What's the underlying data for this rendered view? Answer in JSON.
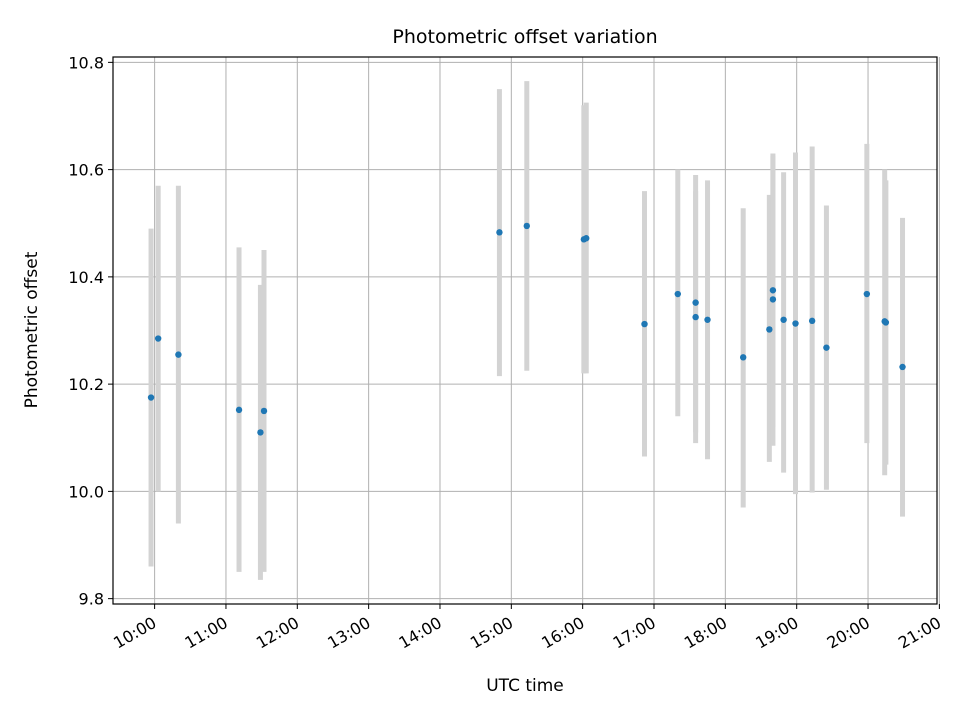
{
  "chart_data": {
    "type": "scatter",
    "title": "Photometric offset variation",
    "xlabel": "UTC time",
    "ylabel": "Photometric offset",
    "x_ticks": [
      "10:00",
      "11:00",
      "12:00",
      "13:00",
      "14:00",
      "15:00",
      "16:00",
      "17:00",
      "18:00",
      "19:00",
      "20:00",
      "21:00"
    ],
    "y_ticks": [
      "9.8",
      "10.0",
      "10.2",
      "10.4",
      "10.6",
      "10.8"
    ],
    "xlim": [
      "09:25",
      "20:58"
    ],
    "ylim": [
      9.79,
      10.81
    ],
    "grid": true,
    "colors": {
      "points": "#1f77b4",
      "errorbars": "#d3d3d3",
      "grid": "#b0b0b0",
      "axes": "#000000"
    },
    "series": [
      {
        "points": [
          {
            "x": "09:57",
            "y": 10.175,
            "ylow": 9.86,
            "yhigh": 10.49
          },
          {
            "x": "10:03",
            "y": 10.285,
            "ylow": 10.0,
            "yhigh": 10.57
          },
          {
            "x": "10:20",
            "y": 10.255,
            "ylow": 9.94,
            "yhigh": 10.57
          },
          {
            "x": "11:11",
            "y": 10.152,
            "ylow": 9.85,
            "yhigh": 10.455
          },
          {
            "x": "11:29",
            "y": 10.11,
            "ylow": 9.835,
            "yhigh": 10.385
          },
          {
            "x": "11:32",
            "y": 10.15,
            "ylow": 9.85,
            "yhigh": 10.45
          },
          {
            "x": "14:50",
            "y": 10.483,
            "ylow": 10.215,
            "yhigh": 10.75
          },
          {
            "x": "15:13",
            "y": 10.495,
            "ylow": 10.225,
            "yhigh": 10.765
          },
          {
            "x": "16:01",
            "y": 10.47,
            "ylow": 10.22,
            "yhigh": 10.72
          },
          {
            "x": "16:03",
            "y": 10.472,
            "ylow": 10.22,
            "yhigh": 10.725
          },
          {
            "x": "16:52",
            "y": 10.312,
            "ylow": 10.065,
            "yhigh": 10.56
          },
          {
            "x": "17:20",
            "y": 10.368,
            "ylow": 10.14,
            "yhigh": 10.6
          },
          {
            "x": "17:35",
            "y": 10.352,
            "ylow": 10.11,
            "yhigh": 10.59
          },
          {
            "x": "17:35",
            "y": 10.325,
            "ylow": 10.09,
            "yhigh": 10.56
          },
          {
            "x": "17:45",
            "y": 10.32,
            "ylow": 10.06,
            "yhigh": 10.58
          },
          {
            "x": "18:15",
            "y": 10.25,
            "ylow": 9.97,
            "yhigh": 10.528
          },
          {
            "x": "18:37",
            "y": 10.302,
            "ylow": 10.055,
            "yhigh": 10.553
          },
          {
            "x": "18:40",
            "y": 10.375,
            "ylow": 10.12,
            "yhigh": 10.63
          },
          {
            "x": "18:40",
            "y": 10.358,
            "ylow": 10.085,
            "yhigh": 10.625
          },
          {
            "x": "18:49",
            "y": 10.32,
            "ylow": 10.035,
            "yhigh": 10.595
          },
          {
            "x": "18:59",
            "y": 10.313,
            "ylow": 9.995,
            "yhigh": 10.632
          },
          {
            "x": "19:13",
            "y": 10.318,
            "ylow": 9.998,
            "yhigh": 10.643
          },
          {
            "x": "19:25",
            "y": 10.268,
            "ylow": 10.003,
            "yhigh": 10.533
          },
          {
            "x": "19:59",
            "y": 10.368,
            "ylow": 10.09,
            "yhigh": 10.648
          },
          {
            "x": "20:14",
            "y": 10.317,
            "ylow": 10.03,
            "yhigh": 10.6
          },
          {
            "x": "20:15",
            "y": 10.315,
            "ylow": 10.05,
            "yhigh": 10.58
          },
          {
            "x": "20:29",
            "y": 10.232,
            "ylow": 9.953,
            "yhigh": 10.51
          }
        ]
      }
    ]
  }
}
